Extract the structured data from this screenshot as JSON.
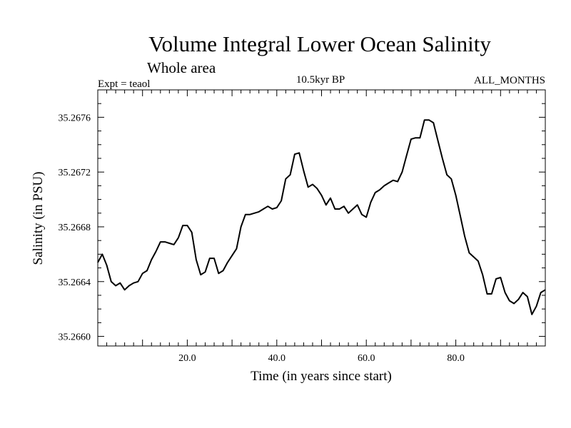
{
  "colors": {
    "line": "#000000",
    "axis": "#000000",
    "background": "#ffffff"
  },
  "chart_data": {
    "type": "line",
    "title": "Volume Integral Lower Ocean Salinity",
    "subtitle": "Whole area",
    "header_left": "Expt = teaol",
    "header_center": "10.5kyr BP",
    "header_right": "ALL_MONTHS",
    "xlabel": "Time (in years since start)",
    "ylabel": "Salinity (in PSU)",
    "xlim": [
      0,
      100
    ],
    "ylim": [
      35.26593,
      35.2678
    ],
    "xticks": [
      20,
      40,
      60,
      80
    ],
    "xtick_labels": [
      "20.0",
      "40.0",
      "60.0",
      "80.0"
    ],
    "yticks": [
      35.266,
      35.2664,
      35.2668,
      35.2672,
      35.2676
    ],
    "ytick_labels": [
      "35.2660",
      "35.2664",
      "35.2668",
      "35.2672",
      "35.2676"
    ],
    "grid": false,
    "series": [
      {
        "name": "Salinity",
        "x": [
          0,
          1,
          2,
          3,
          4,
          5,
          6,
          7,
          8,
          9,
          10,
          11,
          12,
          13,
          14,
          15,
          16,
          17,
          18,
          19,
          20,
          21,
          22,
          23,
          24,
          25,
          26,
          27,
          28,
          29,
          30,
          31,
          32,
          33,
          34,
          35,
          36,
          37,
          38,
          39,
          40,
          41,
          42,
          43,
          44,
          45,
          46,
          47,
          48,
          49,
          50,
          51,
          52,
          53,
          54,
          55,
          56,
          57,
          58,
          59,
          60,
          61,
          62,
          63,
          64,
          65,
          66,
          67,
          68,
          69,
          70,
          71,
          72,
          73,
          74,
          75,
          76,
          77,
          78,
          79,
          80,
          81,
          82,
          83,
          84,
          85,
          86,
          87,
          88,
          89,
          90,
          91,
          92,
          93,
          94,
          95,
          96,
          97,
          98,
          99,
          100
        ],
        "values": [
          35.26654,
          35.2666,
          35.26652,
          35.2664,
          35.26637,
          35.26639,
          35.26634,
          35.26637,
          35.26639,
          35.2664,
          35.26646,
          35.26648,
          35.26656,
          35.26662,
          35.26669,
          35.26669,
          35.26668,
          35.26667,
          35.26672,
          35.26681,
          35.26681,
          35.26676,
          35.26656,
          35.26645,
          35.26647,
          35.26657,
          35.26657,
          35.26646,
          35.26648,
          35.26654,
          35.26659,
          35.26664,
          35.2668,
          35.26689,
          35.26689,
          35.2669,
          35.26691,
          35.26693,
          35.26695,
          35.26693,
          35.26694,
          35.26699,
          35.26715,
          35.26718,
          35.26733,
          35.26734,
          35.26721,
          35.26709,
          35.26711,
          35.26708,
          35.26703,
          35.26696,
          35.26701,
          35.26693,
          35.26693,
          35.26695,
          35.2669,
          35.26693,
          35.26696,
          35.26689,
          35.26687,
          35.26698,
          35.26705,
          35.26707,
          35.2671,
          35.26712,
          35.26714,
          35.26713,
          35.2672,
          35.26732,
          35.26744,
          35.26745,
          35.26745,
          35.26758,
          35.26758,
          35.26756,
          35.26743,
          35.2673,
          35.26718,
          35.26715,
          35.26703,
          35.26688,
          35.26673,
          35.26661,
          35.26658,
          35.26655,
          35.26645,
          35.26631,
          35.26631,
          35.26642,
          35.26643,
          35.26632,
          35.26626,
          35.26624,
          35.26627,
          35.26632,
          35.26629,
          35.26616,
          35.26622,
          35.26632,
          35.26634
        ]
      }
    ]
  }
}
